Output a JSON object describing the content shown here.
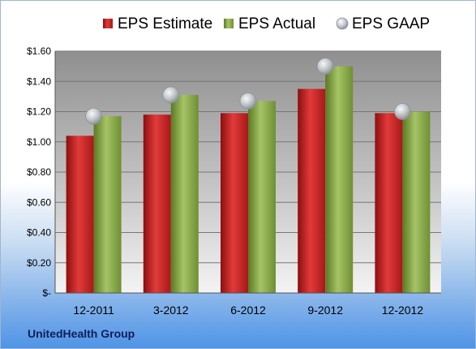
{
  "chart_data": {
    "type": "bar",
    "categories": [
      "12-2011",
      "3-2012",
      "6-2012",
      "9-2012",
      "12-2012"
    ],
    "series": [
      {
        "name": "EPS Estimate",
        "kind": "bar",
        "color": "#d42a2a",
        "values": [
          1.04,
          1.18,
          1.19,
          1.35,
          1.19
        ]
      },
      {
        "name": "EPS Actual",
        "kind": "bar",
        "color": "#8fb04a",
        "values": [
          1.17,
          1.31,
          1.27,
          1.5,
          1.2
        ]
      },
      {
        "name": "EPS GAAP",
        "kind": "marker",
        "color": "#b9c0c8",
        "values": [
          1.17,
          1.31,
          1.27,
          1.5,
          1.2
        ]
      }
    ],
    "ylim": [
      0,
      1.6
    ],
    "yticks": [
      0,
      0.2,
      0.4,
      0.6,
      0.8,
      1.0,
      1.2,
      1.4,
      1.6
    ],
    "ytick_labels": [
      "$-",
      "$0.20",
      "$0.40",
      "$0.60",
      "$0.80",
      "$1.00",
      "$1.20",
      "$1.40",
      "$1.60"
    ],
    "grid": true,
    "legend_position": "top"
  },
  "footer": {
    "company": "UnitedHealth Group"
  }
}
